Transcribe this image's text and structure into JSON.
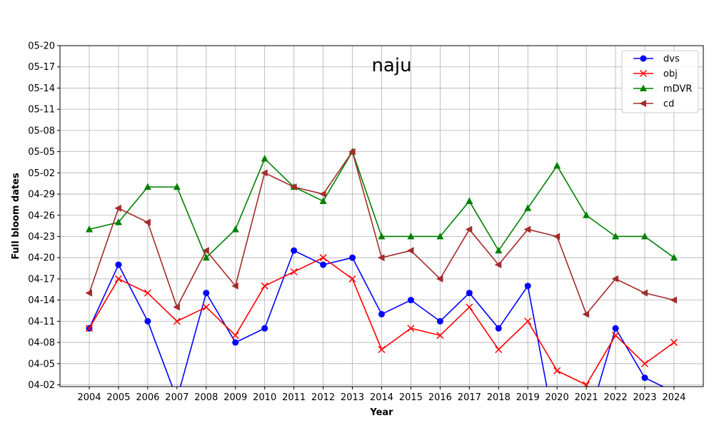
{
  "chart_data": {
    "type": "line",
    "title": "naju",
    "xlabel": "Year",
    "ylabel": "Full bloom dates",
    "x": [
      "2004",
      "2005",
      "2006",
      "2007",
      "2008",
      "2009",
      "2010",
      "2011",
      "2012",
      "2013",
      "2014",
      "2015",
      "2016",
      "2017",
      "2018",
      "2019",
      "2020",
      "2021",
      "2022",
      "2023",
      "2024"
    ],
    "y_ticks": [
      "04-02",
      "04-05",
      "04-08",
      "04-11",
      "04-14",
      "04-17",
      "04-20",
      "04-23",
      "04-26",
      "04-29",
      "05-02",
      "05-05",
      "05-08",
      "05-11",
      "05-14",
      "05-17",
      "05-20"
    ],
    "ylim": [
      "04-01",
      "05-20"
    ],
    "grid": true,
    "legend_position": "top-right",
    "series": [
      {
        "name": "dvs",
        "color": "#0000ff",
        "marker": "circle",
        "values": [
          "04-10",
          "04-19",
          "04-11",
          "03-31",
          "04-15",
          "04-08",
          "04-10",
          "04-21",
          "04-19",
          "04-20",
          "04-12",
          "04-14",
          "04-11",
          "04-15",
          "04-10",
          "04-16",
          "03-25",
          "03-27",
          "04-10",
          "04-03",
          "04-01"
        ]
      },
      {
        "name": "obj",
        "color": "#ff0000",
        "marker": "x",
        "values": [
          "04-10",
          "04-17",
          "04-15",
          "04-11",
          "04-13",
          "04-09",
          "04-16",
          "04-18",
          "04-20",
          "04-17",
          "04-07",
          "04-10",
          "04-09",
          "04-13",
          "04-07",
          "04-11",
          "04-04",
          "04-02",
          "04-09",
          "04-05",
          "04-08"
        ]
      },
      {
        "name": "mDVR",
        "color": "#008000",
        "marker": "triangle-up",
        "values": [
          "04-24",
          "04-25",
          "04-30",
          "04-30",
          "04-20",
          "04-24",
          "05-04",
          "04-30",
          "04-28",
          "05-05",
          "04-23",
          "04-23",
          "04-23",
          "04-28",
          "04-21",
          "04-27",
          "05-03",
          "04-26",
          "04-23",
          "04-23",
          "04-20"
        ]
      },
      {
        "name": "cd",
        "color": "#a52a2a",
        "marker": "triangle-left",
        "values": [
          "04-15",
          "04-27",
          "04-25",
          "04-13",
          "04-21",
          "04-16",
          "05-02",
          "04-30",
          "04-29",
          "05-05",
          "04-20",
          "04-21",
          "04-17",
          "04-24",
          "04-19",
          "04-24",
          "04-23",
          "04-12",
          "04-17",
          "04-15",
          "04-14"
        ]
      }
    ]
  }
}
